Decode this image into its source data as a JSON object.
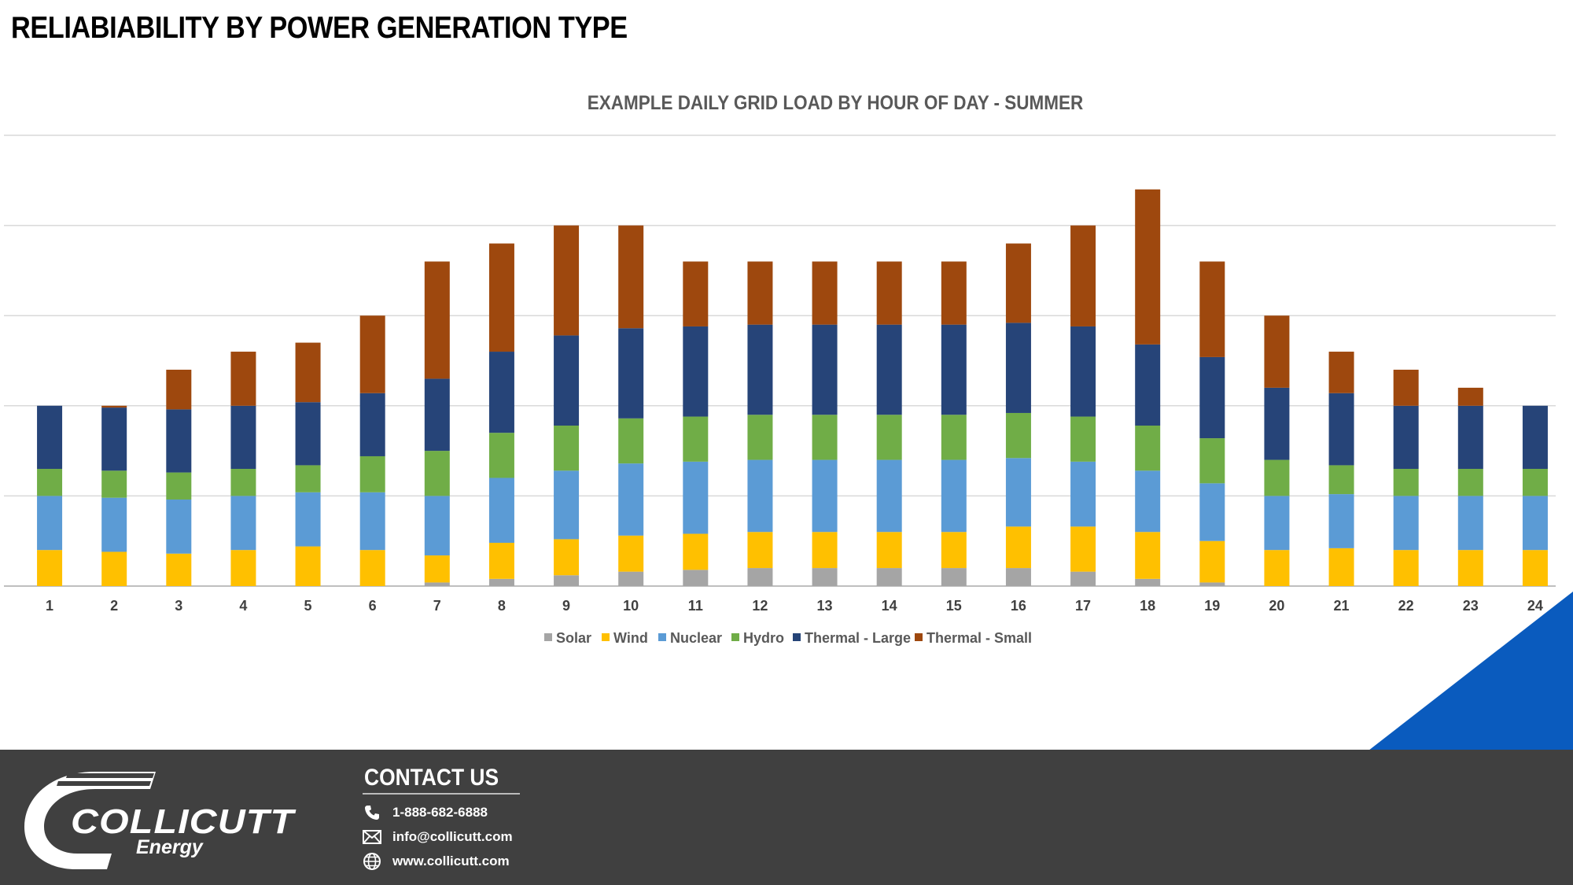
{
  "slide": {
    "title": "RELIABIABILITY BY POWER GENERATION TYPE"
  },
  "chart_data": {
    "type": "bar",
    "stacked": true,
    "title": "EXAMPLE DAILY GRID LOAD BY HOUR OF DAY - SUMMER",
    "xlabel": "",
    "ylabel": "",
    "ylim": [
      0,
      25
    ],
    "grid": true,
    "legend_position": "bottom",
    "categories": [
      "1",
      "2",
      "3",
      "4",
      "5",
      "6",
      "7",
      "8",
      "9",
      "10",
      "11",
      "12",
      "13",
      "14",
      "15",
      "16",
      "17",
      "18",
      "19",
      "20",
      "21",
      "22",
      "23",
      "24"
    ],
    "series": [
      {
        "name": "Solar",
        "color": "#A5A5A5",
        "values": [
          0,
          0,
          0,
          0,
          0,
          0,
          0.2,
          0.4,
          0.6,
          0.8,
          0.9,
          1.0,
          1.0,
          1.0,
          1.0,
          1.0,
          0.8,
          0.4,
          0.2,
          0,
          0,
          0,
          0,
          0
        ]
      },
      {
        "name": "Wind",
        "color": "#FFC000",
        "values": [
          2.0,
          1.9,
          1.8,
          2.0,
          2.2,
          2.0,
          1.5,
          2.0,
          2.0,
          2.0,
          2.0,
          2.0,
          2.0,
          2.0,
          2.0,
          2.3,
          2.5,
          2.6,
          2.3,
          2.0,
          2.1,
          2.0,
          2.0,
          2.0
        ]
      },
      {
        "name": "Nuclear",
        "color": "#5B9BD5",
        "values": [
          3.0,
          3.0,
          3.0,
          3.0,
          3.0,
          3.2,
          3.3,
          3.6,
          3.8,
          4.0,
          4.0,
          4.0,
          4.0,
          4.0,
          4.0,
          3.8,
          3.6,
          3.4,
          3.2,
          3.0,
          3.0,
          3.0,
          3.0,
          3.0
        ]
      },
      {
        "name": "Hydro",
        "color": "#70AD47",
        "values": [
          1.5,
          1.5,
          1.5,
          1.5,
          1.5,
          2.0,
          2.5,
          2.5,
          2.5,
          2.5,
          2.5,
          2.5,
          2.5,
          2.5,
          2.5,
          2.5,
          2.5,
          2.5,
          2.5,
          2.0,
          1.6,
          1.5,
          1.5,
          1.5
        ]
      },
      {
        "name": "Thermal - Large",
        "color": "#264478",
        "values": [
          3.5,
          3.5,
          3.5,
          3.5,
          3.5,
          3.5,
          4.0,
          4.5,
          5.0,
          5.0,
          5.0,
          5.0,
          5.0,
          5.0,
          5.0,
          5.0,
          5.0,
          4.5,
          4.5,
          4.0,
          4.0,
          3.5,
          3.5,
          3.5
        ]
      },
      {
        "name": "Thermal - Small",
        "color": "#9E480E",
        "values": [
          0,
          0.1,
          2.2,
          3.0,
          3.3,
          4.3,
          6.5,
          6.0,
          6.1,
          5.7,
          3.6,
          3.5,
          3.5,
          3.5,
          3.5,
          4.4,
          5.6,
          8.6,
          5.3,
          4.0,
          2.3,
          2.0,
          1.0,
          0
        ]
      }
    ]
  },
  "footer": {
    "logo_name": "COLLICUTT",
    "logo_sub": "Energy",
    "contact_title": "CONTACT US",
    "phone": "1-888-682-6888",
    "email": "info@collicutt.com",
    "website": "www.collicutt.com",
    "icons": [
      "phone-icon",
      "email-icon",
      "globe-icon"
    ],
    "colors": {
      "background": "#404040",
      "accent_blue": "#0A5BBE"
    }
  }
}
